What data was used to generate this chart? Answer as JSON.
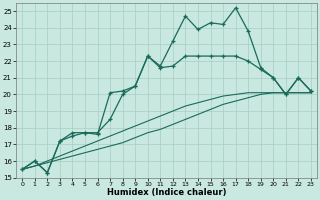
{
  "xlabel": "Humidex (Indice chaleur)",
  "background_color": "#c8e8e0",
  "grid_color": "#a8ccc4",
  "line_color": "#1a6b5a",
  "xlim": [
    -0.5,
    23.5
  ],
  "ylim": [
    15,
    25.5
  ],
  "xticks": [
    0,
    1,
    2,
    3,
    4,
    5,
    6,
    7,
    8,
    9,
    10,
    11,
    12,
    13,
    14,
    15,
    16,
    17,
    18,
    19,
    20,
    21,
    22,
    23
  ],
  "yticks": [
    15,
    16,
    17,
    18,
    19,
    20,
    21,
    22,
    23,
    24,
    25
  ],
  "series1_x": [
    0,
    1,
    2,
    3,
    4,
    5,
    6,
    7,
    8,
    9,
    10,
    11,
    12,
    13,
    14,
    15,
    16,
    17,
    18,
    19,
    20,
    21,
    22,
    23
  ],
  "series1_y": [
    15.5,
    16.0,
    15.3,
    17.2,
    17.5,
    17.7,
    17.6,
    20.1,
    20.2,
    20.5,
    22.3,
    21.7,
    23.2,
    24.7,
    23.9,
    24.3,
    24.2,
    25.2,
    23.8,
    21.6,
    21.0,
    20.0,
    21.0,
    20.2
  ],
  "series2_x": [
    0,
    1,
    2,
    3,
    4,
    5,
    6,
    7,
    8,
    9,
    10,
    11,
    12,
    13,
    14,
    15,
    16,
    17,
    18,
    19,
    20,
    21,
    22,
    23
  ],
  "series2_y": [
    15.5,
    16.0,
    15.3,
    17.2,
    17.7,
    17.7,
    17.7,
    18.5,
    20.0,
    20.5,
    22.3,
    21.6,
    21.7,
    22.3,
    22.3,
    22.3,
    22.3,
    22.3,
    22.0,
    21.5,
    21.0,
    20.0,
    21.0,
    20.2
  ],
  "series3a_x": [
    0,
    1,
    2,
    3,
    4,
    5,
    6,
    7,
    8,
    9,
    10,
    11,
    12,
    13,
    14,
    15,
    16,
    17,
    18,
    19,
    20,
    21,
    22,
    23
  ],
  "series3a_y": [
    15.5,
    15.7,
    15.9,
    16.1,
    16.3,
    16.5,
    16.7,
    16.9,
    17.1,
    17.4,
    17.7,
    17.9,
    18.2,
    18.5,
    18.8,
    19.1,
    19.4,
    19.6,
    19.8,
    20.0,
    20.1,
    20.1,
    20.1,
    20.1
  ],
  "series3b_x": [
    0,
    1,
    2,
    3,
    4,
    5,
    6,
    7,
    8,
    9,
    10,
    11,
    12,
    13,
    14,
    15,
    16,
    17,
    18,
    19,
    20,
    21,
    22,
    23
  ],
  "series3b_y": [
    15.5,
    15.7,
    16.0,
    16.3,
    16.6,
    16.9,
    17.2,
    17.5,
    17.8,
    18.1,
    18.4,
    18.7,
    19.0,
    19.3,
    19.5,
    19.7,
    19.9,
    20.0,
    20.1,
    20.1,
    20.1,
    20.1,
    20.1,
    20.1
  ]
}
